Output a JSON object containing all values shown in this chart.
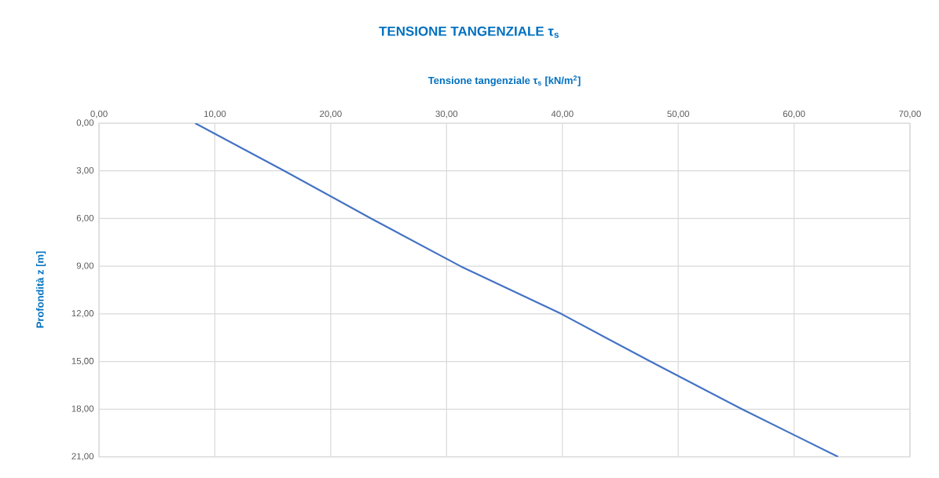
{
  "chart_data": {
    "type": "line",
    "title": "TENSIONE TANGENZIALE τ$_{s}$",
    "xlabel": "Tensione tangenziale τ$_{s}$ [kN/m$^{2}$]",
    "ylabel": "Profondità z [m]",
    "series": [
      {
        "color": "#4472c4",
        "x": [
          8.3,
          16.0,
          23.5,
          31.2,
          39.9,
          47.6,
          55.5,
          63.8
        ],
        "values": [
          0,
          3,
          6,
          9,
          12,
          15,
          18,
          21
        ]
      }
    ],
    "xlim": [
      0,
      70
    ],
    "ylim": [
      21,
      0
    ],
    "xticks": [
      {
        "value": 0,
        "label": "0,00"
      },
      {
        "value": 10,
        "label": "10,00"
      },
      {
        "value": 20,
        "label": "20,00"
      },
      {
        "value": 30,
        "label": "30,00"
      },
      {
        "value": 40,
        "label": "40,00"
      },
      {
        "value": 50,
        "label": "50,00"
      },
      {
        "value": 60,
        "label": "60,00"
      },
      {
        "value": 70,
        "label": "70,00"
      }
    ],
    "yticks": [
      {
        "value": 0,
        "label": "0,00"
      },
      {
        "value": 3,
        "label": "3,00"
      },
      {
        "value": 6,
        "label": "6,00"
      },
      {
        "value": 9,
        "label": "9,00"
      },
      {
        "value": 12,
        "label": "12,00"
      },
      {
        "value": 15,
        "label": "15,00"
      },
      {
        "value": 18,
        "label": "18,00"
      },
      {
        "value": 21,
        "label": "21,00"
      }
    ],
    "grid": true,
    "marker": "none",
    "line_style": "solid"
  }
}
